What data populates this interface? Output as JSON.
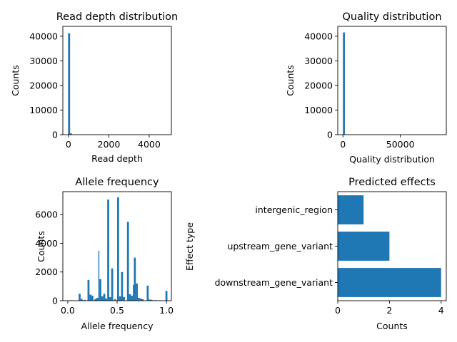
{
  "figure": {
    "background": "#ffffff",
    "bar_color": "#1f77b4"
  },
  "chart_data": [
    {
      "type": "bar",
      "title": "Read depth distribution",
      "xlabel": "Read depth",
      "ylabel": "Counts",
      "xlim": [
        -280,
        5100
      ],
      "ylim": [
        0,
        44000
      ],
      "x_ticks": [
        0,
        2000,
        4000
      ],
      "y_ticks": [
        0,
        10000,
        20000,
        30000,
        40000
      ],
      "bins": [
        {
          "x0": -20,
          "x1": 80,
          "count": 41200
        },
        {
          "x0": 80,
          "x1": 180,
          "count": 500
        },
        {
          "x0": 180,
          "x1": 280,
          "count": 80
        }
      ]
    },
    {
      "type": "bar",
      "title": "Quality distribution",
      "xlabel": "Quality distribution",
      "ylabel": "Counts",
      "xlim": [
        -4500,
        90000
      ],
      "ylim": [
        0,
        44000
      ],
      "x_ticks": [
        0,
        50000
      ],
      "y_ticks": [
        0,
        10000,
        20000,
        30000,
        40000
      ],
      "bins": [
        {
          "x0": 0,
          "x1": 1700,
          "count": 41500
        },
        {
          "x0": 1700,
          "x1": 3400,
          "count": 80
        }
      ]
    },
    {
      "type": "bar",
      "title": "Allele frequency",
      "xlabel": "Allele frequency",
      "ylabel": "Counts",
      "xlim": [
        -0.05,
        1.05
      ],
      "ylim": [
        0,
        7600
      ],
      "x_ticks": [
        0.0,
        0.5,
        1.0
      ],
      "x_tick_labels": [
        "0.0",
        "0.5",
        "1.0"
      ],
      "y_ticks": [
        0,
        2000,
        4000,
        6000
      ],
      "bins": [
        {
          "x0": 0.01,
          "x1": 0.03,
          "count": 30
        },
        {
          "x0": 0.11,
          "x1": 0.13,
          "count": 480
        },
        {
          "x0": 0.13,
          "x1": 0.15,
          "count": 120
        },
        {
          "x0": 0.16,
          "x1": 0.18,
          "count": 60
        },
        {
          "x0": 0.2,
          "x1": 0.22,
          "count": 1450
        },
        {
          "x0": 0.22,
          "x1": 0.24,
          "count": 420
        },
        {
          "x0": 0.24,
          "x1": 0.26,
          "count": 350
        },
        {
          "x0": 0.27,
          "x1": 0.29,
          "count": 120
        },
        {
          "x0": 0.29,
          "x1": 0.31,
          "count": 200
        },
        {
          "x0": 0.31,
          "x1": 0.32,
          "count": 3480
        },
        {
          "x0": 0.32,
          "x1": 0.34,
          "count": 1500
        },
        {
          "x0": 0.34,
          "x1": 0.36,
          "count": 300
        },
        {
          "x0": 0.36,
          "x1": 0.38,
          "count": 480
        },
        {
          "x0": 0.38,
          "x1": 0.4,
          "count": 150
        },
        {
          "x0": 0.4,
          "x1": 0.42,
          "count": 7050
        },
        {
          "x0": 0.42,
          "x1": 0.44,
          "count": 250
        },
        {
          "x0": 0.44,
          "x1": 0.46,
          "count": 2250
        },
        {
          "x0": 0.47,
          "x1": 0.49,
          "count": 100
        },
        {
          "x0": 0.5,
          "x1": 0.52,
          "count": 7200
        },
        {
          "x0": 0.52,
          "x1": 0.54,
          "count": 300
        },
        {
          "x0": 0.54,
          "x1": 0.56,
          "count": 2000
        },
        {
          "x0": 0.56,
          "x1": 0.58,
          "count": 250
        },
        {
          "x0": 0.6,
          "x1": 0.62,
          "count": 5500
        },
        {
          "x0": 0.62,
          "x1": 0.64,
          "count": 450
        },
        {
          "x0": 0.64,
          "x1": 0.66,
          "count": 350
        },
        {
          "x0": 0.66,
          "x1": 0.67,
          "count": 1100
        },
        {
          "x0": 0.67,
          "x1": 0.69,
          "count": 3000
        },
        {
          "x0": 0.69,
          "x1": 0.71,
          "count": 1200
        },
        {
          "x0": 0.71,
          "x1": 0.73,
          "count": 200
        },
        {
          "x0": 0.73,
          "x1": 0.75,
          "count": 150
        },
        {
          "x0": 0.75,
          "x1": 0.77,
          "count": 100
        },
        {
          "x0": 0.8,
          "x1": 0.82,
          "count": 1050
        },
        {
          "x0": 0.82,
          "x1": 0.84,
          "count": 80
        },
        {
          "x0": 0.84,
          "x1": 0.86,
          "count": 60
        },
        {
          "x0": 0.88,
          "x1": 0.9,
          "count": 40
        },
        {
          "x0": 0.93,
          "x1": 0.95,
          "count": 30
        },
        {
          "x0": 0.99,
          "x1": 1.01,
          "count": 680
        }
      ]
    },
    {
      "type": "bar",
      "orientation": "horizontal",
      "title": "Predicted effects",
      "xlabel": "Counts",
      "ylabel": "Effect type",
      "xlim": [
        0,
        4.2
      ],
      "x_ticks": [
        0,
        2,
        4
      ],
      "categories": [
        "intergenic_region",
        "upstream_gene_variant",
        "downstream_gene_variant"
      ],
      "values": [
        1,
        2,
        4
      ]
    }
  ]
}
